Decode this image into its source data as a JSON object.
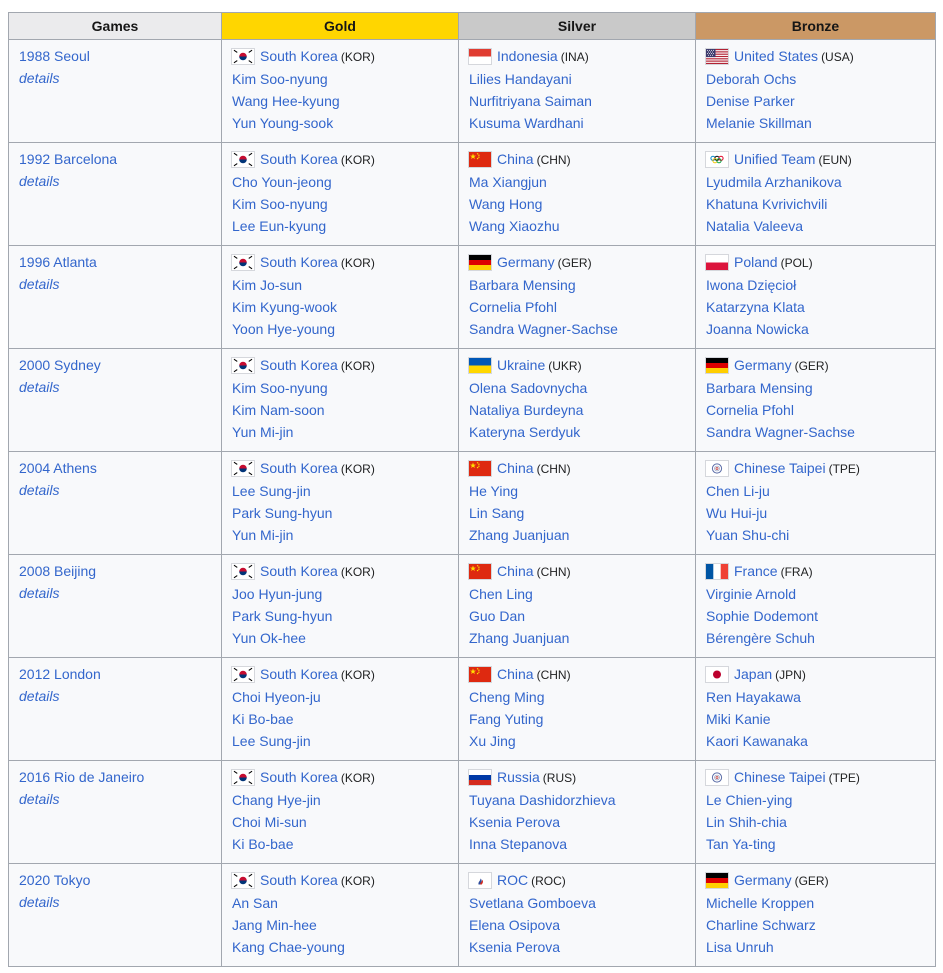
{
  "colors": {
    "games_header_bg": "#ebebed",
    "gold_header_bg": "#ffd600",
    "silver_header_bg": "#c9c9c9",
    "bronze_header_bg": "#cb9865",
    "cell_bg": "#f8f9fb",
    "border": "#a2a7af",
    "link_blue": "#3366cc"
  },
  "table": {
    "headers": [
      {
        "label": "Games",
        "bg": "games_header_bg"
      },
      {
        "label": "Gold",
        "bg": "gold_header_bg"
      },
      {
        "label": "Silver",
        "bg": "silver_header_bg"
      },
      {
        "label": "Bronze",
        "bg": "bronze_header_bg"
      }
    ],
    "details_label": "details",
    "rows": [
      {
        "games": "1988 Seoul",
        "gold": {
          "flag": "south-korea",
          "country": "South Korea",
          "code": "KOR",
          "athletes": [
            "Kim Soo-nyung",
            "Wang Hee-kyung",
            "Yun Young-sook"
          ]
        },
        "silver": {
          "flag": "indonesia",
          "country": "Indonesia",
          "code": "INA",
          "athletes": [
            "Lilies Handayani",
            "Nurfitriyana Saiman",
            "Kusuma Wardhani"
          ]
        },
        "bronze": {
          "flag": "united-states",
          "country": "United States",
          "code": "USA",
          "athletes": [
            "Deborah Ochs",
            "Denise Parker",
            "Melanie Skillman"
          ]
        }
      },
      {
        "games": "1992 Barcelona",
        "gold": {
          "flag": "south-korea",
          "country": "South Korea",
          "code": "KOR",
          "athletes": [
            "Cho Youn-jeong",
            "Kim Soo-nyung",
            "Lee Eun-kyung"
          ]
        },
        "silver": {
          "flag": "china",
          "country": "China",
          "code": "CHN",
          "athletes": [
            "Ma Xiangjun",
            "Wang Hong",
            "Wang Xiaozhu"
          ]
        },
        "bronze": {
          "flag": "unified-team",
          "country": "Unified Team",
          "code": "EUN",
          "athletes": [
            "Lyudmila Arzhanikova",
            "Khatuna Kvrivichvili",
            "Natalia Valeeva"
          ]
        }
      },
      {
        "games": "1996 Atlanta",
        "gold": {
          "flag": "south-korea",
          "country": "South Korea",
          "code": "KOR",
          "athletes": [
            "Kim Jo-sun",
            "Kim Kyung-wook",
            "Yoon Hye-young"
          ]
        },
        "silver": {
          "flag": "germany",
          "country": "Germany",
          "code": "GER",
          "athletes": [
            "Barbara Mensing",
            "Cornelia Pfohl",
            "Sandra Wagner-Sachse"
          ]
        },
        "bronze": {
          "flag": "poland",
          "country": "Poland",
          "code": "POL",
          "athletes": [
            "Iwona Dzięcioł",
            "Katarzyna Klata",
            "Joanna Nowicka"
          ]
        }
      },
      {
        "games": "2000 Sydney",
        "gold": {
          "flag": "south-korea",
          "country": "South Korea",
          "code": "KOR",
          "athletes": [
            "Kim Soo-nyung",
            "Kim Nam-soon",
            "Yun Mi-jin"
          ]
        },
        "silver": {
          "flag": "ukraine",
          "country": "Ukraine",
          "code": "UKR",
          "athletes": [
            "Olena Sadovnycha",
            "Nataliya Burdeyna",
            "Kateryna Serdyuk"
          ]
        },
        "bronze": {
          "flag": "germany",
          "country": "Germany",
          "code": "GER",
          "athletes": [
            "Barbara Mensing",
            "Cornelia Pfohl",
            "Sandra Wagner-Sachse"
          ]
        }
      },
      {
        "games": "2004 Athens",
        "gold": {
          "flag": "south-korea",
          "country": "South Korea",
          "code": "KOR",
          "athletes": [
            "Lee Sung-jin",
            "Park Sung-hyun",
            "Yun Mi-jin"
          ]
        },
        "silver": {
          "flag": "china",
          "country": "China",
          "code": "CHN",
          "athletes": [
            "He Ying",
            "Lin Sang",
            "Zhang Juanjuan"
          ]
        },
        "bronze": {
          "flag": "chinese-taipei",
          "country": "Chinese Taipei",
          "code": "TPE",
          "athletes": [
            "Chen Li-ju",
            "Wu Hui-ju",
            "Yuan Shu-chi"
          ]
        }
      },
      {
        "games": "2008 Beijing",
        "gold": {
          "flag": "south-korea",
          "country": "South Korea",
          "code": "KOR",
          "athletes": [
            "Joo Hyun-jung",
            "Park Sung-hyun",
            "Yun Ok-hee"
          ]
        },
        "silver": {
          "flag": "china",
          "country": "China",
          "code": "CHN",
          "athletes": [
            "Chen Ling",
            "Guo Dan",
            "Zhang Juanjuan"
          ]
        },
        "bronze": {
          "flag": "france",
          "country": "France",
          "code": "FRA",
          "athletes": [
            "Virginie Arnold",
            "Sophie Dodemont",
            "Bérengère Schuh"
          ]
        }
      },
      {
        "games": "2012 London",
        "gold": {
          "flag": "south-korea",
          "country": "South Korea",
          "code": "KOR",
          "athletes": [
            "Choi Hyeon-ju",
            "Ki Bo-bae",
            "Lee Sung-jin"
          ]
        },
        "silver": {
          "flag": "china",
          "country": "China",
          "code": "CHN",
          "athletes": [
            "Cheng Ming",
            "Fang Yuting",
            "Xu Jing"
          ]
        },
        "bronze": {
          "flag": "japan",
          "country": "Japan",
          "code": "JPN",
          "athletes": [
            "Ren Hayakawa",
            "Miki Kanie",
            "Kaori Kawanaka"
          ]
        }
      },
      {
        "games": "2016 Rio de Janeiro",
        "gold": {
          "flag": "south-korea",
          "country": "South Korea",
          "code": "KOR",
          "athletes": [
            "Chang Hye-jin",
            "Choi Mi-sun",
            "Ki Bo-bae"
          ]
        },
        "silver": {
          "flag": "russia",
          "country": "Russia",
          "code": "RUS",
          "athletes": [
            "Tuyana Dashidorzhieva",
            "Ksenia Perova",
            "Inna Stepanova"
          ]
        },
        "bronze": {
          "flag": "chinese-taipei",
          "country": "Chinese Taipei",
          "code": "TPE",
          "athletes": [
            "Le Chien-ying",
            "Lin Shih-chia",
            "Tan Ya-ting"
          ]
        }
      },
      {
        "games": "2020 Tokyo",
        "gold": {
          "flag": "south-korea",
          "country": "South Korea",
          "code": "KOR",
          "athletes": [
            "An San",
            "Jang Min-hee",
            "Kang Chae-young"
          ]
        },
        "silver": {
          "flag": "roc",
          "country": "ROC",
          "code": "ROC",
          "athletes": [
            "Svetlana Gomboeva",
            "Elena Osipova",
            "Ksenia Perova"
          ]
        },
        "bronze": {
          "flag": "germany",
          "country": "Germany",
          "code": "GER",
          "athletes": [
            "Michelle Kroppen",
            "Charline Schwarz",
            "Lisa Unruh"
          ]
        }
      }
    ]
  }
}
